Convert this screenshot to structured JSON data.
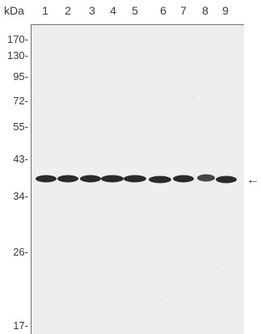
{
  "blot": {
    "unit_label": "kDa",
    "lanes": [
      "1",
      "2",
      "3",
      "4",
      "5",
      "6",
      "7",
      "8",
      "9"
    ],
    "markers": [
      {
        "label": "170-",
        "kda": 170
      },
      {
        "label": "130-",
        "kda": 130
      },
      {
        "label": "95-",
        "kda": 95
      },
      {
        "label": "72-",
        "kda": 72
      },
      {
        "label": "55-",
        "kda": 55
      },
      {
        "label": "43-",
        "kda": 43
      },
      {
        "label": "34-",
        "kda": 34
      },
      {
        "label": "26-",
        "kda": 26
      },
      {
        "label": "17-",
        "kda": 17
      }
    ],
    "arrow_glyph": "←",
    "band_color": "#1a1a1a",
    "membrane_color": "#eeeeee"
  }
}
